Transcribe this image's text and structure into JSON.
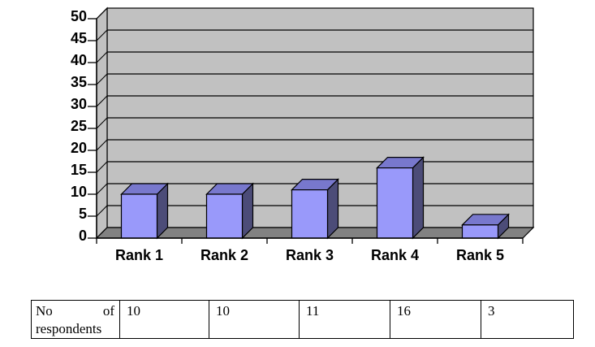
{
  "chart_data": {
    "type": "bar",
    "style": "3d-column",
    "title": "",
    "xlabel": "",
    "ylabel": "",
    "categories": [
      "Rank 1",
      "Rank 2",
      "Rank 3",
      "Rank 4",
      "Rank 5"
    ],
    "values": [
      10,
      10,
      11,
      16,
      3
    ],
    "ylim": [
      0,
      50
    ],
    "yticks": [
      0,
      5,
      10,
      15,
      20,
      25,
      30,
      35,
      40,
      45,
      50
    ],
    "grid": true,
    "legend": false,
    "colors": {
      "bar_front": "#9999FA",
      "bar_top": "#7878CD",
      "bar_side": "#4C4C78",
      "wall": "#C1C1C1",
      "floor": "#828282",
      "outline": "#000000",
      "background": "#FFFFFF"
    }
  },
  "table": {
    "row_label": "No of respondents",
    "values": [
      "10",
      "10",
      "11",
      "16",
      "3"
    ]
  }
}
